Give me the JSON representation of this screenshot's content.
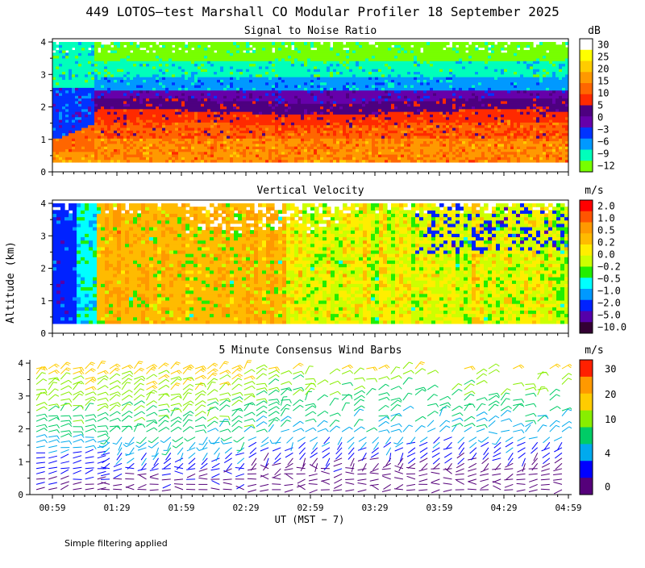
{
  "title": "449 LOTOS—test Marshall CO Modular Profiler 18 September 2025",
  "ylabel": "Altitude (km)",
  "xlabel": "UT  (MST − 7)",
  "footnote": "Simple filtering applied",
  "chart_data": [
    {
      "type": "heatmap",
      "title": "Signal to Noise Ratio",
      "x_ticks": [
        "00:59",
        "01:29",
        "01:59",
        "02:29",
        "02:59",
        "03:29",
        "03:59",
        "04:29",
        "04:59"
      ],
      "y_ticks": [
        "0",
        "1",
        "2",
        "3",
        "4"
      ],
      "ylim": [
        0,
        4.1
      ],
      "data_ylim": [
        0.3,
        4.0
      ],
      "colorbar_unit": "dB",
      "colorbar_labels": [
        "30",
        "25",
        "20",
        "15",
        "10",
        "5",
        "0",
        "−3",
        "−6",
        "−9",
        "−12"
      ],
      "colorbar_colors": [
        "#ffffff",
        "#ffff00",
        "#ffcc00",
        "#ff9900",
        "#ff6600",
        "#ff2a00",
        "#4d0080",
        "#6600aa",
        "#0033ff",
        "#0099ff",
        "#00ffbb",
        "#77ff00"
      ],
      "description_layers": [
        {
          "level": "above 3.0 km",
          "value_db": "-9 to -12"
        },
        {
          "level": "2.4 to 3.0 km",
          "value_db": "-3 to -6"
        },
        {
          "level": "1.8 to 2.4 km",
          "value_db": "0 to 5"
        },
        {
          "level": "below 1.8 km",
          "value_db": "10 to 20"
        }
      ]
    },
    {
      "type": "heatmap",
      "title": "Vertical Velocity",
      "x_ticks": [
        "00:59",
        "01:29",
        "01:59",
        "02:29",
        "02:59",
        "03:29",
        "03:59",
        "04:29",
        "04:59"
      ],
      "y_ticks": [
        "0",
        "1",
        "2",
        "3",
        "4"
      ],
      "ylim": [
        0,
        4.1
      ],
      "data_ylim": [
        0.3,
        4.0
      ],
      "colorbar_unit": "m/s",
      "colorbar_labels": [
        "2.0",
        "1.0",
        "0.5",
        "0.2",
        "0.0",
        "−0.2",
        "−0.5",
        "−1.0",
        "−2.0",
        "−5.0",
        "−10.0"
      ],
      "colorbar_colors": [
        "#ff0000",
        "#ff5500",
        "#ff9900",
        "#ffbb00",
        "#ffee00",
        "#ccff00",
        "#22ee00",
        "#00ffff",
        "#0099ff",
        "#0022ff",
        "#5500aa",
        "#330033"
      ]
    },
    {
      "type": "scatter",
      "title": "5 Minute Consensus Wind Barbs",
      "x_ticks": [
        "00:59",
        "01:29",
        "01:59",
        "02:29",
        "02:59",
        "03:29",
        "03:59",
        "04:29",
        "04:59"
      ],
      "y_ticks": [
        "0",
        "1",
        "2",
        "3",
        "4"
      ],
      "ylim": [
        0,
        4.1
      ],
      "colorbar_unit": "m/s",
      "colorbar_labels": [
        "30",
        "20",
        "10",
        "4",
        "0"
      ],
      "colorbar_colors": [
        "#ff2000",
        "#ff9900",
        "#ffcc00",
        "#88ee00",
        "#00cc66",
        "#00aaee",
        "#0000ff",
        "#55007a"
      ],
      "speed_by_altitude": [
        {
          "altitude_km": 0.5,
          "speed_ms": 2
        },
        {
          "altitude_km": 1.0,
          "speed_ms": 3
        },
        {
          "altitude_km": 1.5,
          "speed_ms": 5
        },
        {
          "altitude_km": 2.0,
          "speed_ms": 7
        },
        {
          "altitude_km": 2.5,
          "speed_ms": 8
        },
        {
          "altitude_km": 3.0,
          "speed_ms": 9
        },
        {
          "altitude_km": 3.5,
          "speed_ms": 10
        },
        {
          "altitude_km": 3.9,
          "speed_ms": 12
        }
      ]
    }
  ]
}
